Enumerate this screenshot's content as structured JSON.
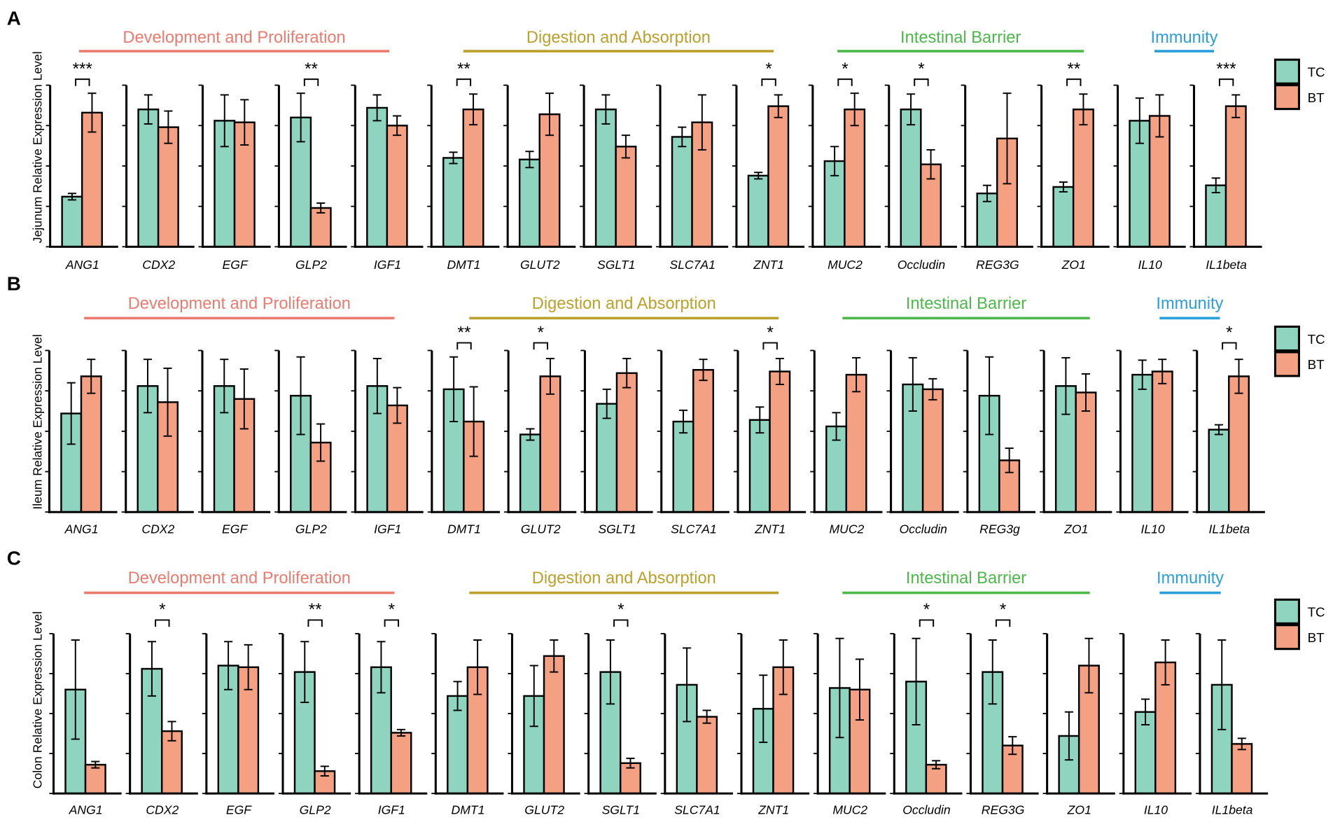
{
  "chart_data": [
    {
      "type": "bar",
      "panel_label": "A",
      "ylabel": "Jejunum Relative Expression Level",
      "ylim": [
        0,
        1
      ],
      "yticks": [
        0,
        0.25,
        0.5,
        0.75,
        1
      ],
      "categories": [
        "ANG1",
        "CDX2",
        "EGF",
        "GLP2",
        "IGF1",
        "DMT1",
        "GLUT2",
        "SGLT1",
        "SLC7A1",
        "ZNT1",
        "MUC2",
        "Occludin",
        "REG3G",
        "ZO1",
        "IL10",
        "IL1beta"
      ],
      "groups": [
        {
          "title": "Development and Proliferation",
          "color": "#EC7B6F",
          "first": 0,
          "last": 4
        },
        {
          "title": "Digestion and Absorption",
          "color": "#BCA02C",
          "first": 5,
          "last": 9
        },
        {
          "title": "Intestinal Barrier",
          "color": "#4CB84A",
          "first": 10,
          "last": 13
        },
        {
          "title": "Immunity",
          "color": "#2A9FDA",
          "first": 14,
          "last": 15
        }
      ],
      "series": [
        {
          "name": "TC",
          "color": "#8FD4BF",
          "values": [
            0.31,
            0.85,
            0.78,
            0.8,
            0.86,
            0.55,
            0.54,
            0.85,
            0.68,
            0.44,
            0.53,
            0.85,
            0.33,
            0.37,
            0.78,
            0.38
          ],
          "errors": [
            0.02,
            0.09,
            0.16,
            0.15,
            0.08,
            0.035,
            0.05,
            0.09,
            0.06,
            0.02,
            0.09,
            0.095,
            0.05,
            0.03,
            0.14,
            0.045
          ]
        },
        {
          "name": "BT",
          "color": "#F4A083",
          "values": [
            0.83,
            0.74,
            0.77,
            0.24,
            0.75,
            0.85,
            0.82,
            0.62,
            0.77,
            0.87,
            0.85,
            0.51,
            0.67,
            0.85,
            0.81,
            0.87
          ],
          "errors": [
            0.12,
            0.1,
            0.14,
            0.03,
            0.06,
            0.095,
            0.13,
            0.07,
            0.17,
            0.07,
            0.1,
            0.09,
            0.28,
            0.095,
            0.13,
            0.07
          ]
        }
      ],
      "significance": [
        "***",
        "",
        "",
        "**",
        "",
        "**",
        "",
        "",
        "",
        "*",
        "*",
        "*",
        "",
        "**",
        "",
        "***"
      ]
    },
    {
      "type": "bar",
      "panel_label": "B",
      "ylabel": "Ileum Relative Expression Level",
      "ylim": [
        0,
        1
      ],
      "yticks": [
        0,
        0.25,
        0.5,
        0.75,
        1
      ],
      "categories": [
        "ANG1",
        "CDX2",
        "EGF",
        "GLP2",
        "IGF1",
        "DMT1",
        "GLUT2",
        "SGLT1",
        "SLC7A1",
        "ZNT1",
        "MUC2",
        "Occludin",
        "REG3g",
        "ZO1",
        "IL10",
        "IL1beta"
      ],
      "groups": [
        {
          "title": "Development and Proliferation",
          "color": "#EC7B6F",
          "first": 0,
          "last": 4
        },
        {
          "title": "Digestion and Absorption",
          "color": "#BCA02C",
          "first": 5,
          "last": 9
        },
        {
          "title": "Intestinal Barrier",
          "color": "#4CB84A",
          "first": 10,
          "last": 13
        },
        {
          "title": "Immunity",
          "color": "#2A9FDA",
          "first": 14,
          "last": 15
        }
      ],
      "series": [
        {
          "name": "TC",
          "color": "#8FD4BF",
          "values": [
            0.61,
            0.78,
            0.78,
            0.72,
            0.78,
            0.76,
            0.48,
            0.67,
            0.56,
            0.57,
            0.53,
            0.79,
            0.72,
            0.78,
            0.85,
            0.51
          ],
          "errors": [
            0.19,
            0.165,
            0.165,
            0.24,
            0.17,
            0.2,
            0.035,
            0.09,
            0.07,
            0.08,
            0.085,
            0.165,
            0.24,
            0.175,
            0.09,
            0.03
          ]
        },
        {
          "name": "BT",
          "color": "#F4A083",
          "values": [
            0.84,
            0.68,
            0.7,
            0.43,
            0.66,
            0.56,
            0.84,
            0.86,
            0.88,
            0.87,
            0.85,
            0.76,
            0.32,
            0.74,
            0.87,
            0.84
          ],
          "errors": [
            0.105,
            0.21,
            0.185,
            0.115,
            0.11,
            0.215,
            0.11,
            0.09,
            0.065,
            0.08,
            0.105,
            0.065,
            0.075,
            0.115,
            0.075,
            0.105
          ]
        }
      ],
      "significance": [
        "",
        "",
        "",
        "",
        "",
        "**",
        "*",
        "",
        "",
        "*",
        "",
        "",
        "",
        "",
        "",
        "*"
      ]
    },
    {
      "type": "bar",
      "panel_label": "C",
      "ylabel": "Colon Relative Expression Level",
      "ylim": [
        0,
        1
      ],
      "yticks": [
        0,
        0.25,
        0.5,
        0.75,
        1
      ],
      "categories": [
        "ANG1",
        "CDX2",
        "EGF",
        "GLP2",
        "IGF1",
        "DMT1",
        "GLUT2",
        "SGLT1",
        "SLC7A1",
        "ZNT1",
        "MUC2",
        "Occludin",
        "REG3G",
        "ZO1",
        "IL10",
        "IL1beta"
      ],
      "groups": [
        {
          "title": "Development and Proliferation",
          "color": "#EC7B6F",
          "first": 0,
          "last": 4
        },
        {
          "title": "Digestion and Absorption",
          "color": "#BCA02C",
          "first": 5,
          "last": 9
        },
        {
          "title": "Intestinal Barrier",
          "color": "#4CB84A",
          "first": 10,
          "last": 13
        },
        {
          "title": "Immunity",
          "color": "#2A9FDA",
          "first": 14,
          "last": 15
        }
      ],
      "series": [
        {
          "name": "TC",
          "color": "#8FD4BF",
          "values": [
            0.65,
            0.78,
            0.8,
            0.76,
            0.79,
            0.61,
            0.61,
            0.76,
            0.68,
            0.53,
            0.66,
            0.7,
            0.76,
            0.36,
            0.51,
            0.68
          ],
          "errors": [
            0.31,
            0.17,
            0.15,
            0.19,
            0.16,
            0.09,
            0.19,
            0.2,
            0.23,
            0.21,
            0.31,
            0.27,
            0.2,
            0.15,
            0.08,
            0.28
          ]
        },
        {
          "name": "BT",
          "color": "#F4A083",
          "values": [
            0.18,
            0.39,
            0.79,
            0.14,
            0.38,
            0.79,
            0.86,
            0.19,
            0.48,
            0.79,
            0.65,
            0.18,
            0.3,
            0.8,
            0.82,
            0.31
          ],
          "errors": [
            0.02,
            0.06,
            0.14,
            0.03,
            0.02,
            0.17,
            0.1,
            0.03,
            0.04,
            0.17,
            0.19,
            0.025,
            0.055,
            0.17,
            0.14,
            0.035
          ]
        }
      ],
      "significance": [
        "",
        "*",
        "",
        "**",
        "*",
        "",
        "",
        "*",
        "",
        "",
        "",
        "*",
        "*",
        "",
        "",
        ""
      ]
    }
  ]
}
